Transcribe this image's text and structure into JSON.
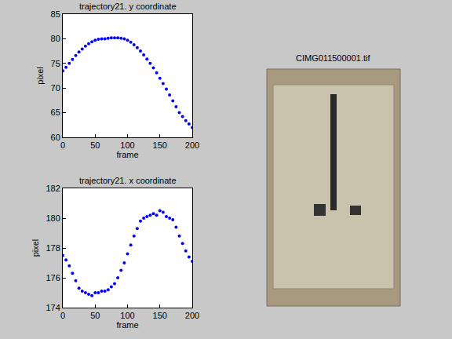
{
  "chart_data": [
    {
      "type": "scatter",
      "title": "trajectory21. y coordinate",
      "x_label": "frame",
      "y_label": "pixel",
      "x": [
        0,
        5,
        10,
        15,
        20,
        25,
        30,
        35,
        40,
        45,
        50,
        55,
        60,
        65,
        70,
        75,
        80,
        85,
        90,
        95,
        100,
        105,
        110,
        115,
        120,
        125,
        130,
        135,
        140,
        145,
        150,
        155,
        160,
        165,
        170,
        175,
        180,
        185,
        190,
        195,
        200
      ],
      "values": [
        73.5,
        74.2,
        75.0,
        75.8,
        76.6,
        77.3,
        77.9,
        78.5,
        79.0,
        79.4,
        79.7,
        79.9,
        80.0,
        80.0,
        80.1,
        80.2,
        80.2,
        80.2,
        80.1,
        80.0,
        79.7,
        79.3,
        78.8,
        78.2,
        77.5,
        76.7,
        75.9,
        75.0,
        74.1,
        73.1,
        72.0,
        70.9,
        69.8,
        68.6,
        67.4,
        66.2,
        65.0,
        64.2,
        63.4,
        62.7,
        62.0
      ],
      "color": "#0000ff",
      "marker": "circle",
      "grid": false,
      "xlim": [
        0,
        200
      ],
      "xticks": [
        0,
        50,
        100,
        150,
        200
      ],
      "ylim": [
        60,
        85
      ],
      "yticks": [
        60,
        65,
        70,
        75,
        80,
        85
      ]
    },
    {
      "type": "scatter",
      "title": "trajectory21. x coordinate",
      "x_label": "frame",
      "y_label": "pixel",
      "x": [
        0,
        5,
        10,
        15,
        20,
        25,
        30,
        35,
        40,
        45,
        50,
        55,
        60,
        65,
        70,
        75,
        80,
        85,
        90,
        95,
        100,
        105,
        110,
        115,
        120,
        125,
        130,
        135,
        140,
        145,
        150,
        155,
        160,
        165,
        170,
        175,
        180,
        185,
        190,
        195,
        200
      ],
      "values": [
        177.5,
        177.2,
        176.8,
        176.3,
        175.8,
        175.3,
        175.1,
        175.0,
        174.9,
        174.8,
        175.0,
        175.0,
        175.1,
        175.1,
        175.2,
        175.4,
        175.6,
        176.0,
        176.5,
        177.0,
        177.6,
        178.2,
        178.8,
        179.3,
        179.8,
        180.0,
        180.1,
        180.2,
        180.3,
        180.2,
        180.5,
        180.4,
        180.1,
        180.0,
        179.9,
        179.4,
        178.8,
        178.3,
        177.8,
        177.4,
        177.1
      ],
      "color": "#0000ff",
      "marker": "circle",
      "grid": false,
      "xlim": [
        0,
        200
      ],
      "xticks": [
        0,
        50,
        100,
        150,
        200
      ],
      "ylim": [
        174,
        182
      ],
      "yticks": [
        174,
        176,
        178,
        180,
        182
      ]
    }
  ],
  "image": {
    "title": "CIMG011500001.tif"
  }
}
